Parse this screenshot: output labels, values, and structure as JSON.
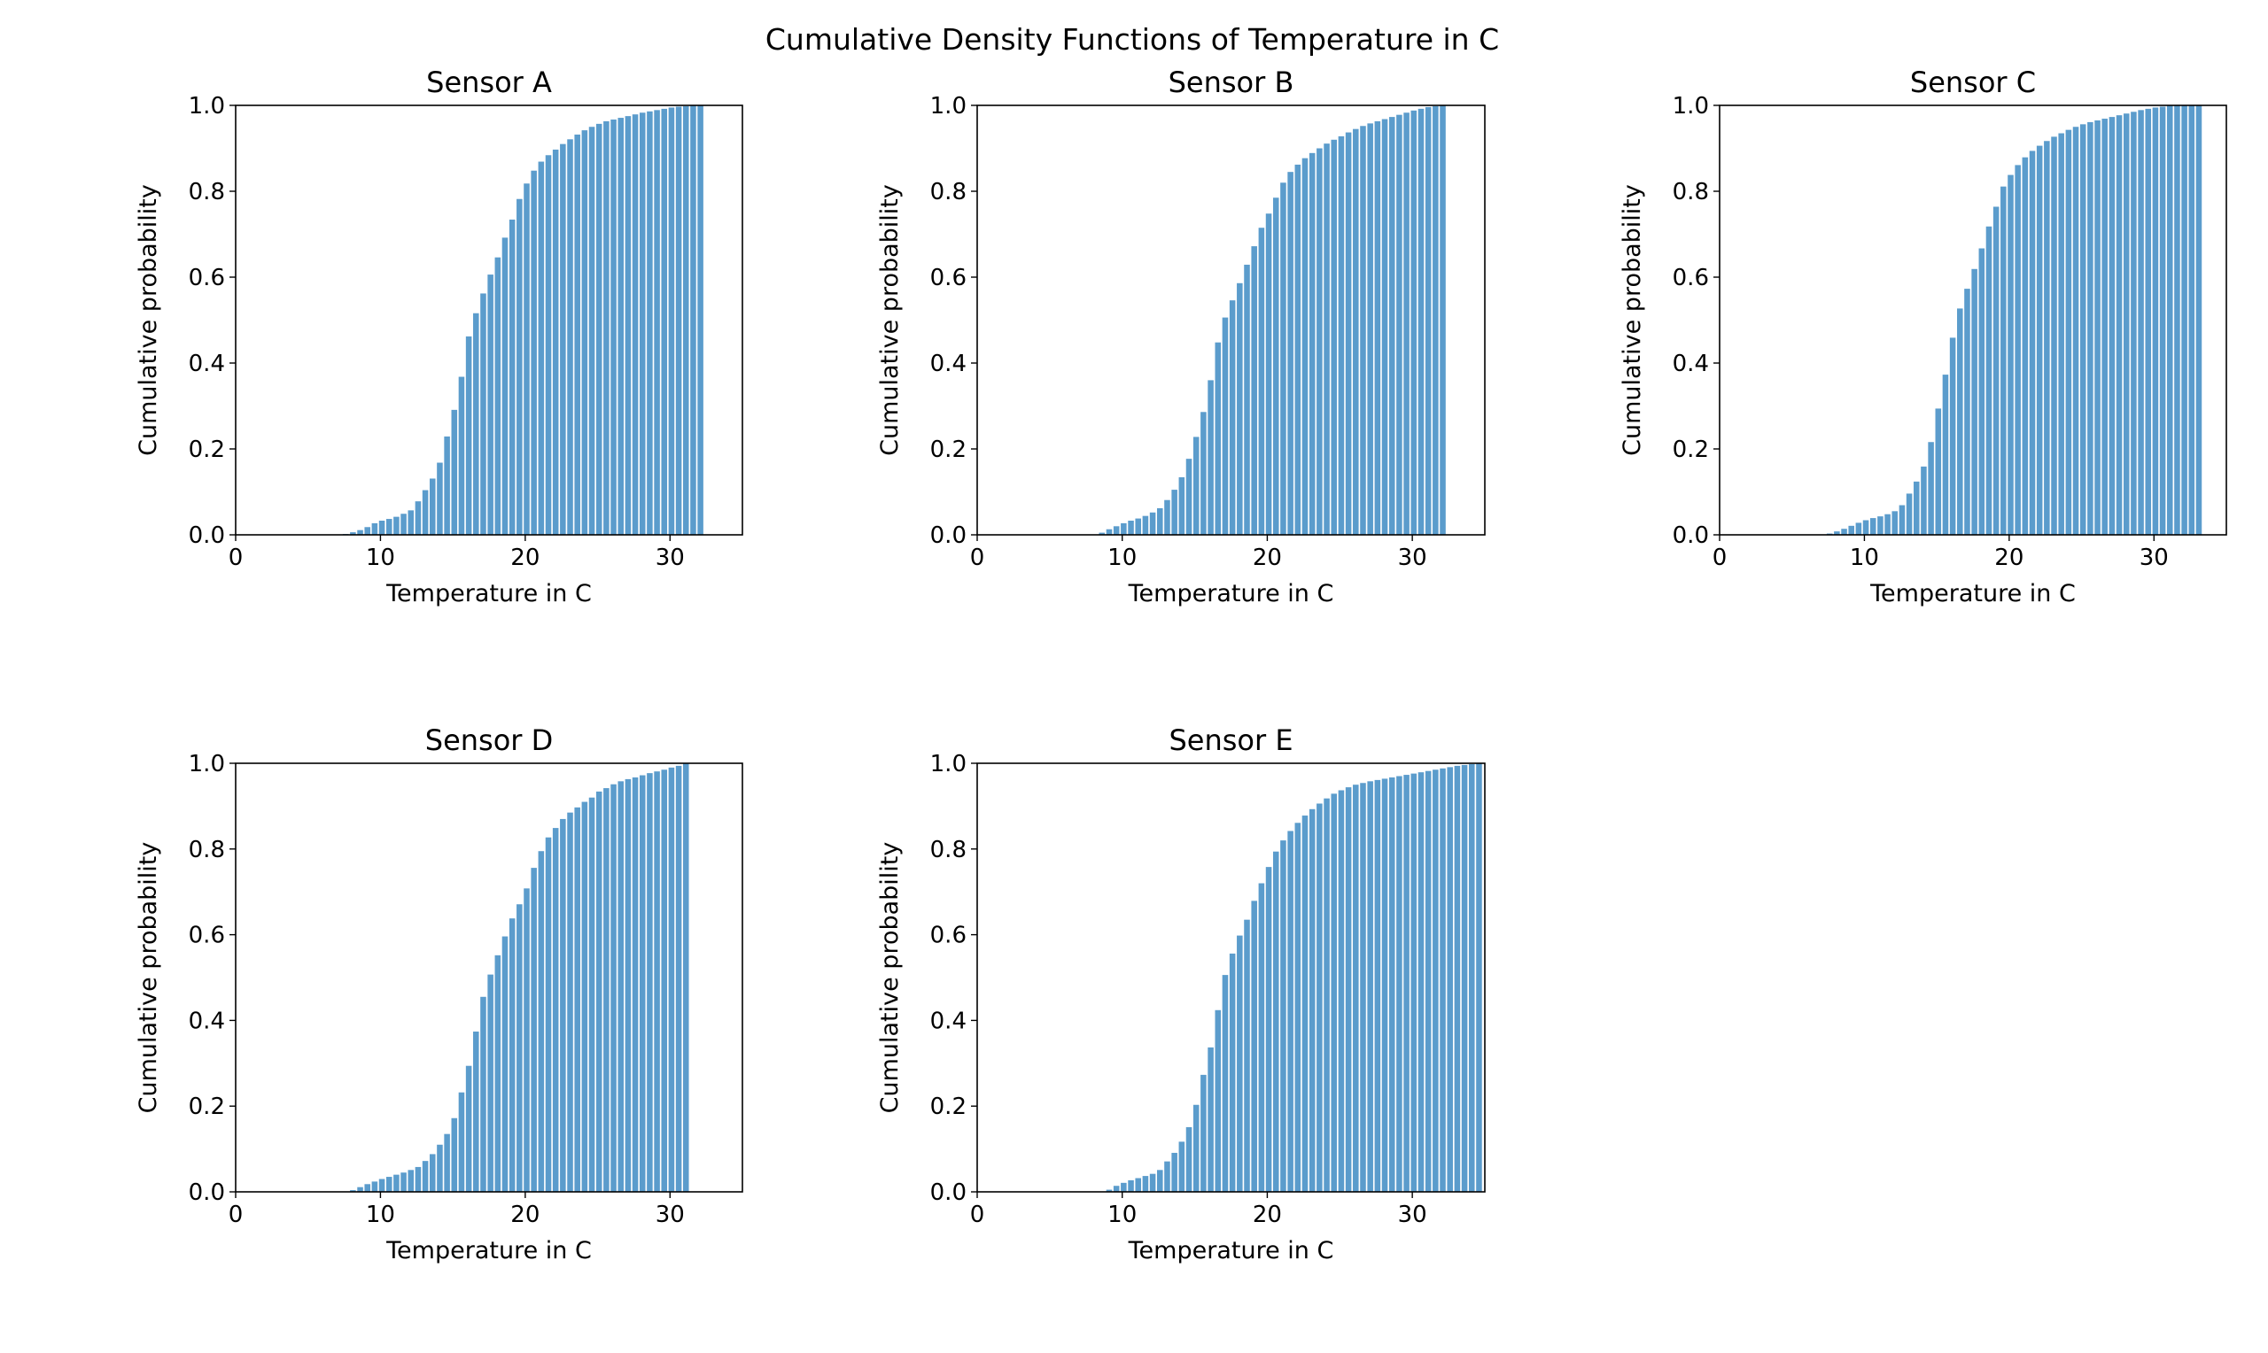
{
  "figure": {
    "title": "Cumulative Density Functions of Temperature in C",
    "bar_color": "#5b9ccc"
  },
  "chart_data": [
    {
      "type": "bar",
      "title": "Sensor A",
      "xlabel": "Temperature in C",
      "ylabel": "Cumulative probability",
      "xlim": [
        0,
        35
      ],
      "ylim": [
        0,
        1
      ],
      "xticks": [
        0,
        10,
        20,
        30
      ],
      "yticks": [
        0.0,
        0.2,
        0.4,
        0.6,
        0.8,
        1.0
      ],
      "x": [
        7.6,
        8.1,
        8.6,
        9.1,
        9.6,
        10.1,
        10.6,
        11.1,
        11.6,
        12.1,
        12.6,
        13.1,
        13.6,
        14.1,
        14.6,
        15.1,
        15.6,
        16.1,
        16.6,
        17.1,
        17.6,
        18.1,
        18.6,
        19.1,
        19.6,
        20.1,
        20.6,
        21.1,
        21.6,
        22.1,
        22.6,
        23.1,
        23.6,
        24.1,
        24.6,
        25.1,
        25.6,
        26.1,
        26.6,
        27.1,
        27.6,
        28.1,
        28.6,
        29.1,
        29.6,
        30.1,
        30.6,
        31.1,
        31.6,
        32.1
      ],
      "values": [
        0.002,
        0.006,
        0.011,
        0.018,
        0.027,
        0.033,
        0.037,
        0.042,
        0.049,
        0.057,
        0.078,
        0.104,
        0.131,
        0.168,
        0.229,
        0.291,
        0.368,
        0.462,
        0.516,
        0.562,
        0.606,
        0.646,
        0.692,
        0.734,
        0.782,
        0.818,
        0.848,
        0.869,
        0.884,
        0.897,
        0.91,
        0.921,
        0.932,
        0.942,
        0.95,
        0.957,
        0.963,
        0.967,
        0.971,
        0.975,
        0.979,
        0.983,
        0.986,
        0.989,
        0.992,
        0.995,
        0.997,
        0.998,
        0.999,
        1.0
      ]
    },
    {
      "type": "bar",
      "title": "Sensor B",
      "xlabel": "Temperature in C",
      "ylabel": "Cumulative probability",
      "xlim": [
        0,
        35
      ],
      "ylim": [
        0,
        1
      ],
      "xticks": [
        0,
        10,
        20,
        30
      ],
      "yticks": [
        0.0,
        0.2,
        0.4,
        0.6,
        0.8,
        1.0
      ],
      "x": [
        8.6,
        9.1,
        9.6,
        10.1,
        10.6,
        11.1,
        11.6,
        12.1,
        12.6,
        13.1,
        13.6,
        14.1,
        14.6,
        15.1,
        15.6,
        16.1,
        16.6,
        17.1,
        17.6,
        18.1,
        18.6,
        19.1,
        19.6,
        20.1,
        20.6,
        21.1,
        21.6,
        22.1,
        22.6,
        23.1,
        23.6,
        24.1,
        24.6,
        25.1,
        25.6,
        26.1,
        26.6,
        27.1,
        27.6,
        28.1,
        28.6,
        29.1,
        29.6,
        30.1,
        30.6,
        31.1,
        31.6,
        32.1
      ],
      "values": [
        0.005,
        0.013,
        0.02,
        0.027,
        0.033,
        0.038,
        0.044,
        0.052,
        0.062,
        0.081,
        0.105,
        0.134,
        0.177,
        0.228,
        0.286,
        0.36,
        0.448,
        0.506,
        0.546,
        0.586,
        0.629,
        0.672,
        0.715,
        0.748,
        0.785,
        0.82,
        0.845,
        0.862,
        0.877,
        0.889,
        0.9,
        0.911,
        0.92,
        0.928,
        0.937,
        0.945,
        0.952,
        0.958,
        0.963,
        0.968,
        0.973,
        0.978,
        0.983,
        0.988,
        0.992,
        0.996,
        0.998,
        1.0
      ]
    },
    {
      "type": "bar",
      "title": "Sensor C",
      "xlabel": "Temperature in C",
      "ylabel": "Cumulative probability",
      "xlim": [
        0,
        35
      ],
      "ylim": [
        0,
        1
      ],
      "xticks": [
        0,
        10,
        20,
        30
      ],
      "yticks": [
        0.0,
        0.2,
        0.4,
        0.6,
        0.8,
        1.0
      ],
      "x": [
        7.6,
        8.1,
        8.6,
        9.1,
        9.6,
        10.1,
        10.6,
        11.1,
        11.6,
        12.1,
        12.6,
        13.1,
        13.6,
        14.1,
        14.6,
        15.1,
        15.6,
        16.1,
        16.6,
        17.1,
        17.6,
        18.1,
        18.6,
        19.1,
        19.6,
        20.1,
        20.6,
        21.1,
        21.6,
        22.1,
        22.6,
        23.1,
        23.6,
        24.1,
        24.6,
        25.1,
        25.6,
        26.1,
        26.6,
        27.1,
        27.6,
        28.1,
        28.6,
        29.1,
        29.6,
        30.1,
        30.6,
        31.1,
        31.6,
        32.1,
        32.6,
        33.1
      ],
      "values": [
        0.003,
        0.008,
        0.014,
        0.021,
        0.028,
        0.034,
        0.039,
        0.043,
        0.048,
        0.055,
        0.069,
        0.096,
        0.124,
        0.159,
        0.216,
        0.294,
        0.373,
        0.459,
        0.527,
        0.573,
        0.619,
        0.667,
        0.718,
        0.764,
        0.811,
        0.838,
        0.861,
        0.879,
        0.894,
        0.906,
        0.917,
        0.927,
        0.935,
        0.943,
        0.95,
        0.956,
        0.961,
        0.965,
        0.969,
        0.973,
        0.977,
        0.981,
        0.985,
        0.989,
        0.992,
        0.995,
        0.997,
        0.999,
        1.0,
        1.0,
        1.0,
        1.0
      ]
    },
    {
      "type": "bar",
      "title": "Sensor D",
      "xlabel": "Temperature in C",
      "ylabel": "Cumulative probability",
      "xlim": [
        0,
        35
      ],
      "ylim": [
        0,
        1
      ],
      "xticks": [
        0,
        10,
        20,
        30
      ],
      "yticks": [
        0.0,
        0.2,
        0.4,
        0.6,
        0.8,
        1.0
      ],
      "x": [
        8.1,
        8.6,
        9.1,
        9.6,
        10.1,
        10.6,
        11.1,
        11.6,
        12.1,
        12.6,
        13.1,
        13.6,
        14.1,
        14.6,
        15.1,
        15.6,
        16.1,
        16.6,
        17.1,
        17.6,
        18.1,
        18.6,
        19.1,
        19.6,
        20.1,
        20.6,
        21.1,
        21.6,
        22.1,
        22.6,
        23.1,
        23.6,
        24.1,
        24.6,
        25.1,
        25.6,
        26.1,
        26.6,
        27.1,
        27.6,
        28.1,
        28.6,
        29.1,
        29.6,
        30.1,
        30.6,
        31.1
      ],
      "values": [
        0.004,
        0.011,
        0.018,
        0.024,
        0.03,
        0.035,
        0.04,
        0.045,
        0.051,
        0.058,
        0.072,
        0.088,
        0.11,
        0.135,
        0.172,
        0.232,
        0.294,
        0.374,
        0.455,
        0.507,
        0.552,
        0.596,
        0.638,
        0.671,
        0.708,
        0.756,
        0.795,
        0.827,
        0.849,
        0.87,
        0.885,
        0.897,
        0.91,
        0.92,
        0.934,
        0.942,
        0.951,
        0.958,
        0.963,
        0.967,
        0.972,
        0.977,
        0.981,
        0.985,
        0.99,
        0.994,
        1.0
      ]
    },
    {
      "type": "bar",
      "title": "Sensor E",
      "xlabel": "Temperature in C",
      "ylabel": "Cumulative probability",
      "xlim": [
        0,
        35
      ],
      "ylim": [
        0,
        1
      ],
      "xticks": [
        0,
        10,
        20,
        30
      ],
      "yticks": [
        0.0,
        0.2,
        0.4,
        0.6,
        0.8,
        1.0
      ],
      "x": [
        9.1,
        9.6,
        10.1,
        10.6,
        11.1,
        11.6,
        12.1,
        12.6,
        13.1,
        13.6,
        14.1,
        14.6,
        15.1,
        15.6,
        16.1,
        16.6,
        17.1,
        17.6,
        18.1,
        18.6,
        19.1,
        19.6,
        20.1,
        20.6,
        21.1,
        21.6,
        22.1,
        22.6,
        23.1,
        23.6,
        24.1,
        24.6,
        25.1,
        25.6,
        26.1,
        26.6,
        27.1,
        27.6,
        28.1,
        28.6,
        29.1,
        29.6,
        30.1,
        30.6,
        31.1,
        31.6,
        32.1,
        32.6,
        33.1,
        33.6,
        34.1,
        34.6
      ],
      "values": [
        0.005,
        0.014,
        0.021,
        0.027,
        0.032,
        0.037,
        0.042,
        0.051,
        0.071,
        0.091,
        0.117,
        0.151,
        0.203,
        0.273,
        0.337,
        0.424,
        0.506,
        0.556,
        0.598,
        0.635,
        0.679,
        0.72,
        0.758,
        0.794,
        0.82,
        0.842,
        0.861,
        0.878,
        0.893,
        0.906,
        0.918,
        0.929,
        0.937,
        0.944,
        0.95,
        0.954,
        0.958,
        0.961,
        0.964,
        0.967,
        0.97,
        0.973,
        0.976,
        0.979,
        0.982,
        0.985,
        0.988,
        0.991,
        0.994,
        0.996,
        0.998,
        1.0
      ]
    }
  ]
}
